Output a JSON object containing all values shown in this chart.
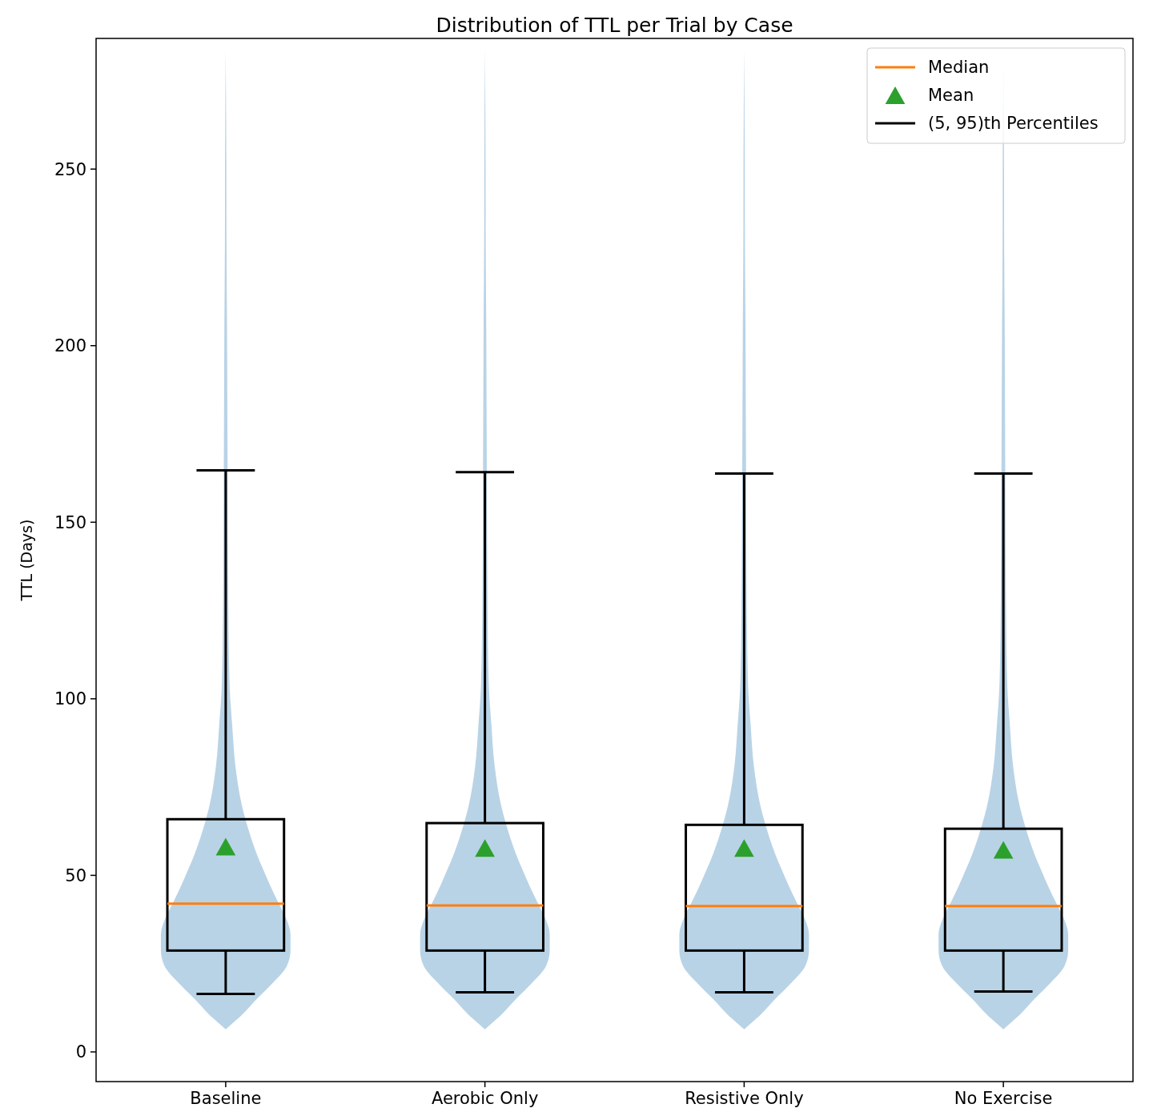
{
  "chart_data": {
    "type": "box",
    "title": "Distribution of TTL per Trial by Case",
    "ylabel": "TTL (Days)",
    "categories": [
      "Baseline",
      "Aerobic Only",
      "Resistive Only",
      "No Exercise"
    ],
    "ylim": [
      -8.4,
      287
    ],
    "yticks": [
      0,
      50,
      100,
      150,
      200,
      250
    ],
    "legend": "top right",
    "annotations": [
      "Median"
    ],
    "series": [
      {
        "type": "scatter",
        "name": "Mean",
        "color": "#2ca02c",
        "marker": "triangle",
        "x": [
          "Baseline",
          "Aerobic Only",
          "Resistive Only",
          "No Exercise"
        ],
        "values": [
          57.7,
          57.3,
          57.3,
          56.8
        ]
      },
      {
        "name": "(5, 95)th Percentiles",
        "color": "#000000",
        "boxes": [
          {
            "low": 16.4,
            "q1": 28.7,
            "median": 42,
            "q3": 65.9,
            "high": 164.7
          },
          {
            "low": 16.9,
            "q1": 28.7,
            "median": 41.5,
            "q3": 64.8,
            "high": 164.2
          },
          {
            "low": 16.9,
            "q1": 28.7,
            "median": 41.3,
            "q3": 64.3,
            "high": 163.8
          },
          {
            "low": 17.1,
            "q1": 28.7,
            "median": 41.3,
            "q3": 63.2,
            "high": 163.8
          }
        ]
      }
    ]
  }
}
